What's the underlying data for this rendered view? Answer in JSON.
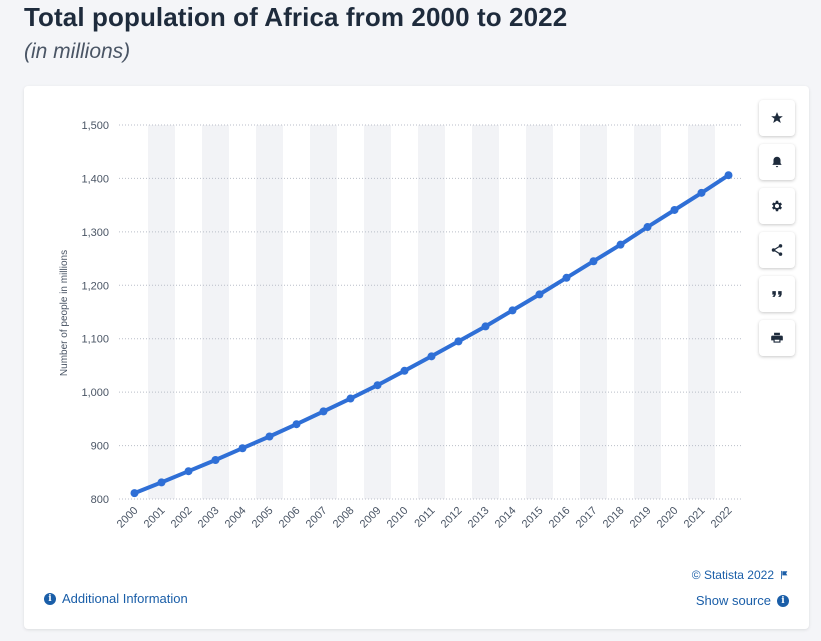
{
  "header": {
    "title": "Total population of Africa from 2000 to 2022",
    "subtitle": "(in millions)"
  },
  "chart_data": {
    "type": "line",
    "title": "Total population of Africa from 2000 to 2022",
    "subtitle": "(in millions)",
    "xlabel": "",
    "ylabel": "Number of people in millions",
    "ylim": [
      800,
      1500
    ],
    "yticks": [
      800,
      900,
      1000,
      1100,
      1200,
      1300,
      1400,
      1500
    ],
    "ytick_labels": [
      "800",
      "900",
      "1,000",
      "1,100",
      "1,200",
      "1,300",
      "1,400",
      "1,500"
    ],
    "grid": true,
    "categories": [
      "2000",
      "2001",
      "2002",
      "2003",
      "2004",
      "2005",
      "2006",
      "2007",
      "2008",
      "2009",
      "2010",
      "2011",
      "2012",
      "2013",
      "2014",
      "2015",
      "2016",
      "2017",
      "2018",
      "2019",
      "2020",
      "2021",
      "2022"
    ],
    "series": [
      {
        "name": "Total population",
        "color": "#2f6fd6",
        "values": [
          811,
          831,
          852,
          873,
          895,
          917,
          940,
          964,
          988,
          1013,
          1040,
          1067,
          1095,
          1123,
          1153,
          1183,
          1214,
          1245,
          1276,
          1309,
          1341,
          1373,
          1406
        ]
      }
    ]
  },
  "toolbar": {
    "buttons": [
      {
        "name": "favorite-button",
        "icon": "star-icon"
      },
      {
        "name": "notification-button",
        "icon": "bell-icon"
      },
      {
        "name": "settings-button",
        "icon": "gear-icon"
      },
      {
        "name": "share-button",
        "icon": "share-icon"
      },
      {
        "name": "cite-button",
        "icon": "quote-icon"
      },
      {
        "name": "print-button",
        "icon": "print-icon"
      }
    ]
  },
  "footer": {
    "additional_info": "Additional Information",
    "copyright": "© Statista 2022",
    "show_source": "Show source"
  },
  "colors": {
    "line": "#2f6fd6",
    "link": "#1a5ea8",
    "band": "#f2f3f6"
  }
}
